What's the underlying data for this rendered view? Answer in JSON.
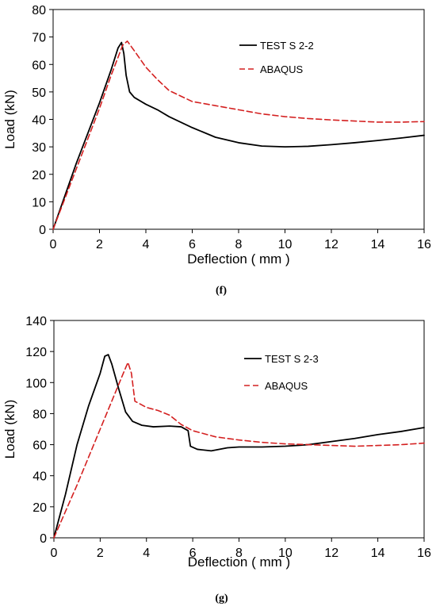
{
  "chart_data": [
    {
      "type": "line",
      "caption": "(f)",
      "xlabel": "Deflection ( mm )",
      "ylabel": "Load (kN)",
      "xlim": [
        0,
        16
      ],
      "ylim": [
        0,
        80
      ],
      "xticks": [
        0,
        2,
        4,
        6,
        8,
        10,
        12,
        14,
        16
      ],
      "yticks": [
        0,
        10,
        20,
        30,
        40,
        50,
        60,
        70,
        80
      ],
      "grid": false,
      "legend_position": "top-right",
      "series": [
        {
          "name": "TEST S 2-2",
          "color": "#000000",
          "style": "solid",
          "x": [
            0,
            0.5,
            1,
            1.5,
            2,
            2.5,
            2.8,
            2.95,
            3.05,
            3.15,
            3.3,
            3.5,
            4,
            4.5,
            5,
            6,
            7,
            8,
            9,
            10,
            11,
            12,
            13,
            14,
            15,
            16
          ],
          "y": [
            0,
            12,
            24,
            35,
            46,
            58,
            66,
            68,
            64,
            56,
            50,
            48,
            45.5,
            43.5,
            41,
            37,
            33.5,
            31.5,
            30.3,
            30,
            30.2,
            30.8,
            31.5,
            32.3,
            33.2,
            34.2
          ]
        },
        {
          "name": "ABAQUS",
          "color": "#d42020",
          "style": "dashed",
          "x": [
            0,
            0.5,
            1,
            1.5,
            2,
            2.5,
            3,
            3.2,
            3.5,
            4,
            4.5,
            5,
            6,
            7,
            8,
            9,
            10,
            11,
            12,
            13,
            14,
            15,
            16
          ],
          "y": [
            0,
            11,
            22,
            33,
            44,
            56,
            67,
            68.5,
            65,
            59,
            54.5,
            50.5,
            46.5,
            45,
            43.5,
            42,
            41,
            40.3,
            39.8,
            39.4,
            39,
            39,
            39.2
          ]
        }
      ]
    },
    {
      "type": "line",
      "caption": "(g)",
      "xlabel": "Deflection ( mm )",
      "ylabel": "Load (kN)",
      "xlim": [
        0,
        16
      ],
      "ylim": [
        0,
        140
      ],
      "xticks": [
        0,
        2,
        4,
        6,
        8,
        10,
        12,
        14,
        16
      ],
      "yticks": [
        0,
        20,
        40,
        60,
        80,
        100,
        120,
        140
      ],
      "grid": false,
      "legend_position": "top-right",
      "series": [
        {
          "name": "TEST S 2-3",
          "color": "#000000",
          "style": "solid",
          "x": [
            0,
            0.5,
            1,
            1.5,
            2,
            2.2,
            2.35,
            2.5,
            2.8,
            3.1,
            3.4,
            3.8,
            4.3,
            5,
            5.5,
            5.8,
            5.9,
            6.2,
            6.8,
            7.5,
            8,
            9,
            10,
            11,
            12,
            13,
            14,
            15,
            16
          ],
          "y": [
            0,
            28,
            60,
            85,
            106,
            117,
            118,
            112,
            96,
            81,
            75,
            72.5,
            71.5,
            72,
            71.5,
            69,
            59,
            57,
            56,
            58,
            58.5,
            58.5,
            59,
            60,
            62,
            64,
            66.5,
            68.5,
            71
          ]
        },
        {
          "name": "ABAQUS",
          "color": "#d42020",
          "style": "dashed",
          "x": [
            0,
            0.5,
            1,
            1.5,
            2,
            2.5,
            3,
            3.2,
            3.35,
            3.5,
            4,
            4.5,
            5,
            5.5,
            6,
            7,
            8,
            9,
            10,
            11,
            12,
            13,
            14,
            15,
            16
          ],
          "y": [
            0,
            17,
            34,
            52,
            70,
            88,
            106,
            113,
            106,
            88,
            84,
            82,
            79,
            73,
            69,
            65,
            63,
            61.5,
            60.5,
            60,
            59.5,
            59,
            59.5,
            60,
            61
          ]
        }
      ]
    }
  ]
}
